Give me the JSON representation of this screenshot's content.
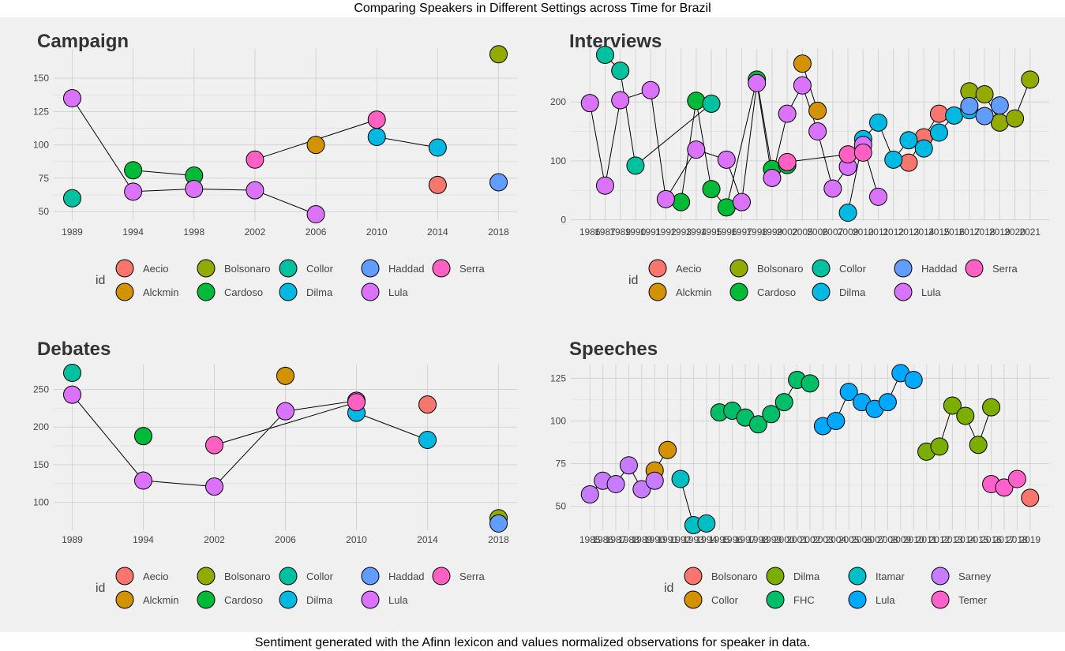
{
  "title": "Comparing Speakers in Different Settings across Time for Brazil",
  "caption": "Sentiment generated with the Afinn lexicon and values normalized observations for speaker in data.",
  "colors": {
    "Aecio": "#F8766D",
    "Alckmin": "#D39200",
    "Bolsonaro": "#93AA00",
    "Cardoso": "#00BA38",
    "Collor": "#00C19F",
    "Dilma": "#00B9E3",
    "Haddad": "#619CFF",
    "Lula": "#DB72FB",
    "Serra": "#FF61C3",
    "S_Bolsonaro": "#F8766D",
    "S_Collor": "#D39200",
    "S_Dilma": "#7CAE00",
    "S_FHC": "#00BE67",
    "S_Itamar": "#00BFC4",
    "S_Lula": "#00A9FF",
    "S_Sarney": "#C77CFF",
    "S_Temer": "#FF61CC"
  },
  "chart_data": [
    {
      "type": "line",
      "title": "Campaign",
      "xlabel": "",
      "ylabel": "",
      "x_ticks": [
        "1989",
        "1994",
        "1998",
        "2002",
        "2006",
        "2010",
        "2014",
        "2018"
      ],
      "ylim": [
        43,
        172
      ],
      "y_ticks": [
        50,
        75,
        100,
        125,
        150
      ],
      "legend": {
        "title": "id",
        "position": "bottom",
        "rows": [
          [
            "Aecio",
            "Bolsonaro",
            "Collor",
            "Haddad",
            "Serra"
          ],
          [
            "Alckmin",
            "Cardoso",
            "Dilma",
            "Lula"
          ]
        ]
      },
      "series": [
        {
          "name": "Aecio",
          "color_key": "Aecio",
          "points": [
            {
              "x": "2014",
              "y": 70
            }
          ]
        },
        {
          "name": "Alckmin",
          "color_key": "Alckmin",
          "points": [
            {
              "x": "2006",
              "y": 100
            }
          ]
        },
        {
          "name": "Bolsonaro",
          "color_key": "Bolsonaro",
          "points": [
            {
              "x": "2018",
              "y": 168
            }
          ]
        },
        {
          "name": "Cardoso",
          "color_key": "Cardoso",
          "points": [
            {
              "x": "1994",
              "y": 81
            },
            {
              "x": "1998",
              "y": 77
            }
          ]
        },
        {
          "name": "Collor",
          "color_key": "Collor",
          "points": [
            {
              "x": "1989",
              "y": 60
            }
          ]
        },
        {
          "name": "Dilma",
          "color_key": "Dilma",
          "points": [
            {
              "x": "2010",
              "y": 106
            },
            {
              "x": "2014",
              "y": 98
            }
          ]
        },
        {
          "name": "Haddad",
          "color_key": "Haddad",
          "points": [
            {
              "x": "2018",
              "y": 72
            }
          ]
        },
        {
          "name": "Lula",
          "color_key": "Lula",
          "points": [
            {
              "x": "1989",
              "y": 135
            },
            {
              "x": "1994",
              "y": 65
            },
            {
              "x": "1998",
              "y": 67
            },
            {
              "x": "2002",
              "y": 66
            },
            {
              "x": "2006",
              "y": 48
            }
          ]
        },
        {
          "name": "Serra",
          "color_key": "Serra",
          "points": [
            {
              "x": "2002",
              "y": 89
            },
            {
              "x": "2010",
              "y": 119
            }
          ]
        }
      ]
    },
    {
      "type": "line",
      "title": "Interviews",
      "xlabel": "",
      "ylabel": "",
      "x_ticks": [
        "1986",
        "1987",
        "1989",
        "1990",
        "1991",
        "1992",
        "1993",
        "1994",
        "1995",
        "1996",
        "1997",
        "1998",
        "1999",
        "2002",
        "2005",
        "2006",
        "2007",
        "2009",
        "2010",
        "2011",
        "2012",
        "2013",
        "2014",
        "2015",
        "2016",
        "2017",
        "2018",
        "2019",
        "2020",
        "2021"
      ],
      "ylim": [
        -2,
        290
      ],
      "y_ticks": [
        0,
        100,
        200
      ],
      "legend": {
        "title": "id",
        "position": "bottom",
        "rows": [
          [
            "Aecio",
            "Bolsonaro",
            "Collor",
            "Haddad",
            "Serra"
          ],
          [
            "Alckmin",
            "Cardoso",
            "Dilma",
            "Lula"
          ]
        ]
      },
      "series": [
        {
          "name": "Aecio",
          "color_key": "Aecio",
          "points": [
            {
              "x": "2013",
              "y": 97
            },
            {
              "x": "2014",
              "y": 140
            },
            {
              "x": "2015",
              "y": 180
            }
          ]
        },
        {
          "name": "Alckmin",
          "color_key": "Alckmin",
          "points": [
            {
              "x": "2005",
              "y": 265
            },
            {
              "x": "2006",
              "y": 185
            }
          ]
        },
        {
          "name": "Bolsonaro",
          "color_key": "Bolsonaro",
          "points": [
            {
              "x": "2017",
              "y": 218
            },
            {
              "x": "2018",
              "y": 213
            },
            {
              "x": "2019",
              "y": 165
            },
            {
              "x": "2020",
              "y": 172
            },
            {
              "x": "2021",
              "y": 238
            }
          ]
        },
        {
          "name": "Cardoso",
          "color_key": "Cardoso",
          "points": [
            {
              "x": "1993",
              "y": 30
            },
            {
              "x": "1994",
              "y": 202
            },
            {
              "x": "1995",
              "y": 52
            },
            {
              "x": "1996",
              "y": 21
            },
            {
              "x": "1998",
              "y": 238
            },
            {
              "x": "1999",
              "y": 86
            },
            {
              "x": "2002",
              "y": 93
            }
          ]
        },
        {
          "name": "Collor",
          "color_key": "Collor",
          "points": [
            {
              "x": "1987",
              "y": 280
            },
            {
              "x": "1989",
              "y": 253
            },
            {
              "x": "1990",
              "y": 92
            },
            {
              "x": "1995",
              "y": 197
            }
          ]
        },
        {
          "name": "Dilma",
          "color_key": "Dilma",
          "points": [
            {
              "x": "2009",
              "y": 12
            },
            {
              "x": "2010",
              "y": 137
            },
            {
              "x": "2011",
              "y": 165
            },
            {
              "x": "2012",
              "y": 102
            },
            {
              "x": "2013",
              "y": 135
            },
            {
              "x": "2014",
              "y": 121
            },
            {
              "x": "2015",
              "y": 148
            },
            {
              "x": "2016",
              "y": 177
            },
            {
              "x": "2017",
              "y": 186
            }
          ]
        },
        {
          "name": "Haddad",
          "color_key": "Haddad",
          "points": [
            {
              "x": "2017",
              "y": 193
            },
            {
              "x": "2018",
              "y": 176
            },
            {
              "x": "2019",
              "y": 194
            }
          ]
        },
        {
          "name": "Lula",
          "color_key": "Lula",
          "points": [
            {
              "x": "1986",
              "y": 198
            },
            {
              "x": "1987",
              "y": 58
            },
            {
              "x": "1989",
              "y": 203
            },
            {
              "x": "1991",
              "y": 220
            },
            {
              "x": "1992",
              "y": 35
            },
            {
              "x": "1994",
              "y": 119
            },
            {
              "x": "1996",
              "y": 102
            },
            {
              "x": "1997",
              "y": 30
            },
            {
              "x": "1998",
              "y": 232
            },
            {
              "x": "1999",
              "y": 71
            },
            {
              "x": "2002",
              "y": 180
            },
            {
              "x": "2005",
              "y": 228
            },
            {
              "x": "2006",
              "y": 150
            },
            {
              "x": "2007",
              "y": 53
            },
            {
              "x": "2009",
              "y": 90
            },
            {
              "x": "2010",
              "y": 127
            },
            {
              "x": "2011",
              "y": 39
            }
          ]
        },
        {
          "name": "Serra",
          "color_key": "Serra",
          "points": [
            {
              "x": "2002",
              "y": 98
            },
            {
              "x": "2009",
              "y": 111
            },
            {
              "x": "2010",
              "y": 114
            }
          ]
        }
      ]
    },
    {
      "type": "line",
      "title": "Debates",
      "xlabel": "",
      "ylabel": "",
      "x_ticks": [
        "1989",
        "1994",
        "2002",
        "2006",
        "2010",
        "2014",
        "2018"
      ],
      "ylim": [
        63,
        283
      ],
      "y_ticks": [
        100,
        150,
        200,
        250
      ],
      "legend": {
        "title": "id",
        "position": "bottom",
        "rows": [
          [
            "Aecio",
            "Bolsonaro",
            "Collor",
            "Haddad",
            "Serra"
          ],
          [
            "Alckmin",
            "Cardoso",
            "Dilma",
            "Lula"
          ]
        ]
      },
      "series": [
        {
          "name": "Aecio",
          "color_key": "Aecio",
          "points": [
            {
              "x": "2014",
              "y": 230
            }
          ]
        },
        {
          "name": "Alckmin",
          "color_key": "Alckmin",
          "points": [
            {
              "x": "2006",
              "y": 268
            }
          ]
        },
        {
          "name": "Bolsonaro",
          "color_key": "Bolsonaro",
          "points": [
            {
              "x": "2018",
              "y": 79
            }
          ]
        },
        {
          "name": "Cardoso",
          "color_key": "Cardoso",
          "points": [
            {
              "x": "1994",
              "y": 188
            }
          ]
        },
        {
          "name": "Collor",
          "color_key": "Collor",
          "points": [
            {
              "x": "1989",
              "y": 272
            }
          ]
        },
        {
          "name": "Dilma",
          "color_key": "Dilma",
          "points": [
            {
              "x": "2010",
              "y": 219
            },
            {
              "x": "2014",
              "y": 183
            }
          ]
        },
        {
          "name": "Haddad",
          "color_key": "Haddad",
          "points": [
            {
              "x": "2018",
              "y": 72
            }
          ]
        },
        {
          "name": "Lula",
          "color_key": "Lula",
          "points": [
            {
              "x": "1989",
              "y": 243
            },
            {
              "x": "1994",
              "y": 129
            },
            {
              "x": "2002",
              "y": 121
            },
            {
              "x": "2006",
              "y": 221
            },
            {
              "x": "2010",
              "y": 235
            }
          ]
        },
        {
          "name": "Serra",
          "color_key": "Serra",
          "points": [
            {
              "x": "2002",
              "y": 176
            },
            {
              "x": "2010",
              "y": 233
            }
          ]
        }
      ]
    },
    {
      "type": "line",
      "title": "Speeches",
      "xlabel": "",
      "ylabel": "",
      "x_ticks": [
        "1985",
        "1986",
        "1987",
        "1988",
        "1989",
        "1990",
        "1991",
        "1992",
        "1993",
        "1994",
        "1995",
        "1996",
        "1997",
        "1998",
        "1999",
        "2000",
        "2001",
        "2002",
        "2003",
        "2004",
        "2005",
        "2006",
        "2007",
        "2008",
        "2009",
        "2010",
        "2011",
        "2012",
        "2013",
        "2014",
        "2015",
        "2016",
        "2017",
        "2018",
        "2019"
      ],
      "ylim": [
        36,
        133
      ],
      "y_ticks": [
        50,
        75,
        100,
        125
      ],
      "legend": {
        "title": "id",
        "position": "bottom",
        "rows": [
          [
            "Bolsonaro",
            "Dilma",
            "Itamar",
            "Sarney"
          ],
          [
            "Collor",
            "FHC",
            "Lula",
            "Temer"
          ]
        ]
      },
      "series": [
        {
          "name": "Bolsonaro",
          "color_key": "S_Bolsonaro",
          "points": [
            {
              "x": "2019",
              "y": 55
            }
          ]
        },
        {
          "name": "Collor",
          "color_key": "S_Collor",
          "points": [
            {
              "x": "1990",
              "y": 71
            },
            {
              "x": "1991",
              "y": 83
            }
          ]
        },
        {
          "name": "Dilma",
          "color_key": "S_Dilma",
          "points": [
            {
              "x": "2011",
              "y": 82
            },
            {
              "x": "2012",
              "y": 85
            },
            {
              "x": "2013",
              "y": 109
            },
            {
              "x": "2014",
              "y": 103
            },
            {
              "x": "2015",
              "y": 86
            },
            {
              "x": "2016",
              "y": 108
            }
          ]
        },
        {
          "name": "FHC",
          "color_key": "S_FHC",
          "points": [
            {
              "x": "1995",
              "y": 105
            },
            {
              "x": "1996",
              "y": 106
            },
            {
              "x": "1997",
              "y": 102
            },
            {
              "x": "1998",
              "y": 98
            },
            {
              "x": "1999",
              "y": 104
            },
            {
              "x": "2000",
              "y": 111
            },
            {
              "x": "2001",
              "y": 124
            },
            {
              "x": "2002",
              "y": 122
            }
          ]
        },
        {
          "name": "Itamar",
          "color_key": "S_Itamar",
          "points": [
            {
              "x": "1992",
              "y": 66
            },
            {
              "x": "1993",
              "y": 39
            },
            {
              "x": "1994",
              "y": 40
            }
          ]
        },
        {
          "name": "Lula",
          "color_key": "S_Lula",
          "points": [
            {
              "x": "2003",
              "y": 97
            },
            {
              "x": "2004",
              "y": 100
            },
            {
              "x": "2005",
              "y": 117
            },
            {
              "x": "2006",
              "y": 111
            },
            {
              "x": "2007",
              "y": 107
            },
            {
              "x": "2008",
              "y": 111
            },
            {
              "x": "2009",
              "y": 128
            },
            {
              "x": "2010",
              "y": 124
            }
          ]
        },
        {
          "name": "Sarney",
          "color_key": "S_Sarney",
          "points": [
            {
              "x": "1985",
              "y": 57
            },
            {
              "x": "1986",
              "y": 65
            },
            {
              "x": "1987",
              "y": 63
            },
            {
              "x": "1988",
              "y": 74
            },
            {
              "x": "1989",
              "y": 60
            },
            {
              "x": "1990",
              "y": 65
            }
          ]
        },
        {
          "name": "Temer",
          "color_key": "S_Temer",
          "points": [
            {
              "x": "2016",
              "y": 63
            },
            {
              "x": "2017",
              "y": 61
            },
            {
              "x": "2018",
              "y": 66
            }
          ]
        }
      ]
    }
  ]
}
